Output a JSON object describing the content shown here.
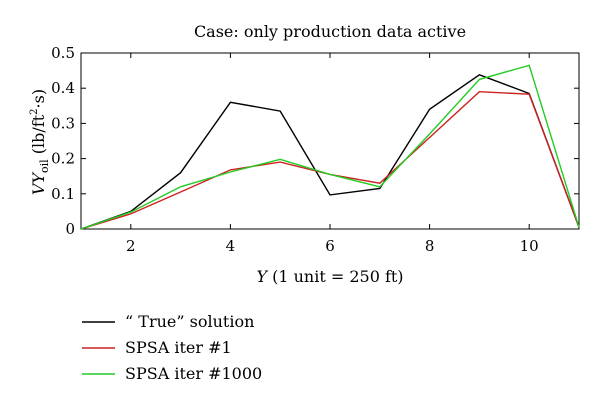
{
  "chart_data": {
    "type": "line",
    "title": "Case: only production data active",
    "xlabel_italic": "Y",
    "xlabel_rest": " (1 unit = 250 ft)",
    "ylabel_v": "V",
    "ylabel_y": "Y",
    "ylabel_sub": "oil",
    "ylabel_unit_open": " (lb/ft",
    "ylabel_unit_sup": "2",
    "ylabel_unit_close": "·s)",
    "xlim": [
      1,
      11
    ],
    "ylim": [
      0,
      0.5
    ],
    "x_ticks": [
      2,
      4,
      6,
      8,
      10
    ],
    "x_tick_labels": [
      "2",
      "4",
      "6",
      "8",
      "10"
    ],
    "y_ticks": [
      0,
      0.1,
      0.2,
      0.3,
      0.4,
      0.5
    ],
    "y_tick_labels": [
      "0",
      "0.1",
      "0.2",
      "0.3",
      "0.4",
      "0.5"
    ],
    "legend_position": "below",
    "series": [
      {
        "name": "“ True” solution",
        "color": "#000000",
        "x": [
          1,
          2,
          3,
          4,
          5,
          6,
          7,
          8,
          9,
          10,
          11
        ],
        "y": [
          0,
          0.05,
          0.16,
          0.36,
          0.335,
          0.097,
          0.115,
          0.34,
          0.438,
          0.385,
          0.005
        ]
      },
      {
        "name": "SPSA iter #1",
        "color": "#cc2222",
        "x": [
          1,
          2,
          3,
          4,
          5,
          6,
          7,
          8,
          9,
          10,
          11
        ],
        "y": [
          0,
          0.043,
          0.105,
          0.168,
          0.19,
          0.155,
          0.13,
          0.26,
          0.39,
          0.383,
          0.005
        ]
      },
      {
        "name": "SPSA iter #1000",
        "color": "#22cc22",
        "x": [
          1,
          2,
          3,
          4,
          5,
          6,
          7,
          8,
          9,
          10,
          11
        ],
        "y": [
          0,
          0.048,
          0.12,
          0.162,
          0.198,
          0.155,
          0.12,
          0.27,
          0.425,
          0.465,
          0.005
        ]
      }
    ]
  }
}
